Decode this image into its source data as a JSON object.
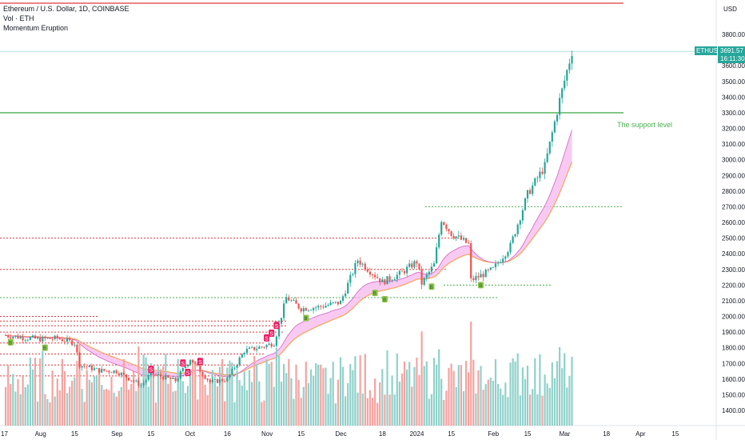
{
  "header": {
    "title": "Ethereum / U.S. Dollar, 1D, COINBASE",
    "indicator1": "Vol · ETH",
    "indicator2": "Momentum Eruption"
  },
  "currency": "USD",
  "price_tag": {
    "symbol": "ETHUSD",
    "price": "3691.57",
    "countdown": "16:11:30"
  },
  "annotation": "The support level",
  "signal_label_sell": "S",
  "signal_label_buy": "B",
  "colors": {
    "up": "#26a69a",
    "down": "#ef5350",
    "vol_up": "#8fd1ca",
    "vol_down": "#f5a3a0",
    "cloud": "#f5b8ee",
    "ema_slow": "#f7a35c",
    "ema_fast": "#d060c0",
    "red_line": "#e0393e",
    "support_line": "#4caf50",
    "price_tag_bg": "#26a69a"
  },
  "chart_data": {
    "type": "candlestick",
    "title": "Ethereum / U.S. Dollar, 1D, COINBASE",
    "y_axis": {
      "ticks": [
        "1400.00",
        "1500.00",
        "1600.00",
        "1700.00",
        "1800.00",
        "1900.00",
        "2000.00",
        "2100.00",
        "2200.00",
        "2300.00",
        "2400.00",
        "2500.00",
        "2600.00",
        "2700.00",
        "2800.00",
        "2900.00",
        "3000.00",
        "3100.00",
        "3200.00",
        "3300.00",
        "3400.00",
        "3500.00",
        "3600.00",
        "3800.00"
      ],
      "range": [
        1330,
        3900
      ]
    },
    "x_axis": {
      "ticks": [
        "17",
        "Aug",
        "15",
        "Sep",
        "15",
        "Oct",
        "16",
        "Nov",
        "15",
        "Dec",
        "18",
        "2024",
        "15",
        "Feb",
        "15",
        "Mar",
        "18",
        "Apr",
        "15"
      ]
    },
    "close_series": [
      {
        "date": "2023-07-17",
        "close": 1880
      },
      {
        "date": "2023-07-25",
        "close": 1865
      },
      {
        "date": "2023-08-01",
        "close": 1855
      },
      {
        "date": "2023-08-08",
        "close": 1860
      },
      {
        "date": "2023-08-15",
        "close": 1830
      },
      {
        "date": "2023-08-17",
        "close": 1690
      },
      {
        "date": "2023-08-25",
        "close": 1655
      },
      {
        "date": "2023-09-01",
        "close": 1650
      },
      {
        "date": "2023-09-11",
        "close": 1560
      },
      {
        "date": "2023-09-15",
        "close": 1635
      },
      {
        "date": "2023-09-25",
        "close": 1590
      },
      {
        "date": "2023-10-01",
        "close": 1730
      },
      {
        "date": "2023-10-09",
        "close": 1580
      },
      {
        "date": "2023-10-16",
        "close": 1600
      },
      {
        "date": "2023-10-23",
        "close": 1780
      },
      {
        "date": "2023-10-31",
        "close": 1810
      },
      {
        "date": "2023-11-04",
        "close": 1830
      },
      {
        "date": "2023-11-09",
        "close": 2120
      },
      {
        "date": "2023-11-15",
        "close": 2050
      },
      {
        "date": "2023-11-22",
        "close": 2060
      },
      {
        "date": "2023-12-01",
        "close": 2090
      },
      {
        "date": "2023-12-08",
        "close": 2360
      },
      {
        "date": "2023-12-18",
        "close": 2220
      },
      {
        "date": "2023-12-25",
        "close": 2270
      },
      {
        "date": "2024-01-01",
        "close": 2350
      },
      {
        "date": "2024-01-03",
        "close": 2210
      },
      {
        "date": "2024-01-08",
        "close": 2330
      },
      {
        "date": "2024-01-11",
        "close": 2620
      },
      {
        "date": "2024-01-15",
        "close": 2530
      },
      {
        "date": "2024-01-22",
        "close": 2460
      },
      {
        "date": "2024-01-23",
        "close": 2230
      },
      {
        "date": "2024-02-01",
        "close": 2300
      },
      {
        "date": "2024-02-08",
        "close": 2450
      },
      {
        "date": "2024-02-15",
        "close": 2780
      },
      {
        "date": "2024-02-22",
        "close": 2960
      },
      {
        "date": "2024-02-28",
        "close": 3380
      },
      {
        "date": "2024-03-04",
        "close": 3691.57
      }
    ],
    "horizontal_levels": [
      {
        "price": 3969,
        "style": "solid",
        "color": "red"
      },
      {
        "price": 3300,
        "style": "solid",
        "color": "green",
        "label": "The support level"
      },
      {
        "price": 2700,
        "style": "dotted",
        "color": "green"
      },
      {
        "price": 2200,
        "style": "dotted",
        "color": "green"
      },
      {
        "price": 2120,
        "style": "dotted",
        "color": "green"
      }
    ],
    "last_price": 3691.57
  }
}
